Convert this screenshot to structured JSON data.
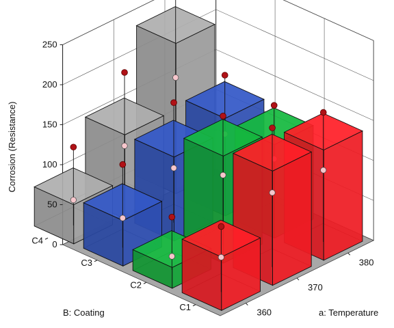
{
  "chart_data": {
    "type": "bar3d",
    "zlabel": "Corrosion  (Resistance)",
    "xlabel": "a: Temperature",
    "ylabel": "B: Coating",
    "x_categories": [
      "360",
      "370",
      "380"
    ],
    "y_categories": [
      "C1",
      "C2",
      "C3",
      "C4"
    ],
    "zlim": [
      0,
      250
    ],
    "z_ticks": [
      0,
      50,
      100,
      150,
      200,
      250
    ],
    "bars": [
      {
        "coating": "C1",
        "temperature": "360",
        "value": 67,
        "color": "#ee1c24"
      },
      {
        "coating": "C2",
        "temperature": "360",
        "value": 26,
        "color": "#13a538"
      },
      {
        "coating": "C3",
        "temperature": "360",
        "value": 57,
        "color": "#2e4fb2"
      },
      {
        "coating": "C4",
        "temperature": "360",
        "value": 49,
        "color": "#9b9b9b"
      },
      {
        "coating": "C1",
        "temperature": "370",
        "value": 143,
        "color": "#ee1c24"
      },
      {
        "coating": "C2",
        "temperature": "370",
        "value": 134,
        "color": "#13a538"
      },
      {
        "coating": "C3",
        "temperature": "370",
        "value": 105,
        "color": "#2e4fb2"
      },
      {
        "coating": "C4",
        "temperature": "370",
        "value": 105,
        "color": "#9b9b9b"
      },
      {
        "coating": "C1",
        "temperature": "380",
        "value": 138,
        "color": "#ee1c24"
      },
      {
        "coating": "C2",
        "temperature": "380",
        "value": 117,
        "color": "#13a538"
      },
      {
        "coating": "C3",
        "temperature": "380",
        "value": 122,
        "color": "#2e4fb2"
      },
      {
        "coating": "C4",
        "temperature": "380",
        "value": 188,
        "color": "#9b9b9b"
      }
    ],
    "design_points": [
      {
        "coating": "C1",
        "temperature": "360",
        "value": 82
      },
      {
        "coating": "C2",
        "temperature": "360",
        "value": 66
      },
      {
        "coating": "C3",
        "temperature": "360",
        "value": 104
      },
      {
        "coating": "C4",
        "temperature": "360",
        "value": 98
      },
      {
        "coating": "C1",
        "temperature": "370",
        "value": 174
      },
      {
        "coating": "C2",
        "temperature": "370",
        "value": 161
      },
      {
        "coating": "C3",
        "temperature": "370",
        "value": 150
      },
      {
        "coating": "C4",
        "temperature": "370",
        "value": 160
      },
      {
        "coating": "C1",
        "temperature": "380",
        "value": 162
      },
      {
        "coating": "C2",
        "temperature": "380",
        "value": 143
      },
      {
        "coating": "C3",
        "temperature": "380",
        "value": 153
      },
      {
        "coating": "C4",
        "temperature": "380",
        "value": 238
      }
    ],
    "floor_color": "#a8a8a8",
    "grid": true
  }
}
